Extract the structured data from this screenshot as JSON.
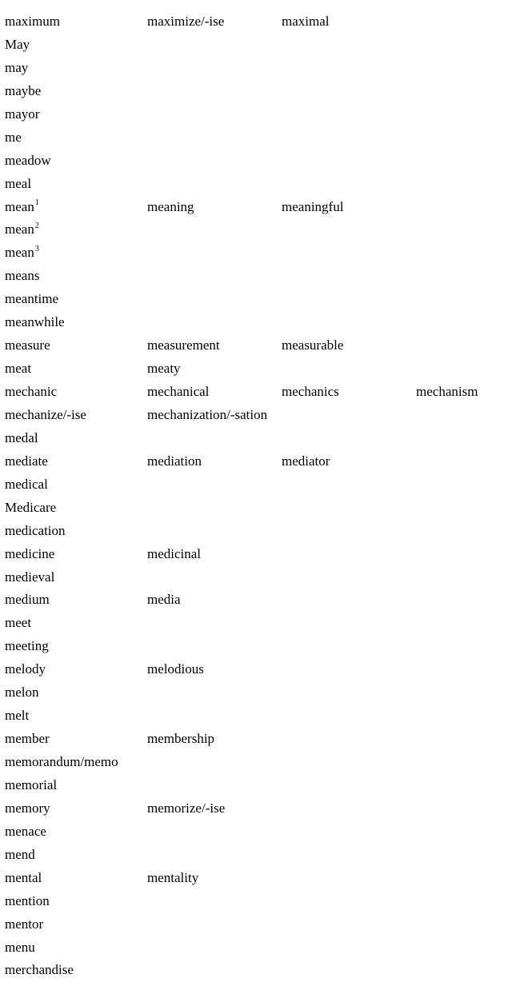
{
  "rows": [
    {
      "words": [
        "maximum",
        "maximize/-ise",
        "maximal"
      ]
    },
    {
      "words": [
        "May"
      ]
    },
    {
      "words": [
        "may"
      ]
    },
    {
      "words": [
        "maybe"
      ]
    },
    {
      "words": [
        "mayor"
      ]
    },
    {
      "words": [
        "me"
      ]
    },
    {
      "words": [
        "meadow"
      ]
    },
    {
      "words": [
        "meal"
      ]
    },
    {
      "words": [
        "mean",
        "meaning",
        "meaningful"
      ],
      "sup": "1"
    },
    {
      "words": [
        "mean"
      ],
      "sup": "2"
    },
    {
      "words": [
        "mean"
      ],
      "sup": "3"
    },
    {
      "words": [
        "means"
      ]
    },
    {
      "words": [
        "meantime"
      ]
    },
    {
      "words": [
        "meanwhile"
      ]
    },
    {
      "words": [
        "measure",
        "measurement",
        "measurable"
      ]
    },
    {
      "words": [
        "meat",
        "meaty"
      ]
    },
    {
      "words": [
        "mechanic",
        "mechanical",
        "mechanics",
        "mechanism"
      ]
    },
    {
      "words": [
        "mechanize/-ise",
        "mechanization/-sation"
      ]
    },
    {
      "words": [
        "medal"
      ]
    },
    {
      "words": [
        "mediate",
        "mediation",
        "mediator"
      ]
    },
    {
      "words": [
        "medical"
      ]
    },
    {
      "words": [
        "Medicare"
      ]
    },
    {
      "words": [
        "medication"
      ]
    },
    {
      "words": [
        "medicine",
        "medicinal"
      ]
    },
    {
      "words": [
        "medieval"
      ]
    },
    {
      "words": [
        "medium",
        "media"
      ]
    },
    {
      "words": [
        "meet"
      ]
    },
    {
      "words": [
        "meeting"
      ]
    },
    {
      "words": [
        "melody",
        "melodious"
      ]
    },
    {
      "words": [
        "melon"
      ]
    },
    {
      "words": [
        "melt"
      ]
    },
    {
      "words": [
        "member",
        "membership"
      ]
    },
    {
      "words": [
        "memorandum/memo"
      ]
    },
    {
      "words": [
        "memorial"
      ]
    },
    {
      "words": [
        "memory",
        "memorize/-ise"
      ]
    },
    {
      "words": [
        "menace"
      ]
    },
    {
      "words": [
        "mend"
      ]
    },
    {
      "words": [
        "mental",
        "mentality"
      ]
    },
    {
      "words": [
        "mention"
      ]
    },
    {
      "words": [
        "mentor"
      ]
    },
    {
      "words": [
        "menu"
      ]
    },
    {
      "words": [
        "merchandise"
      ]
    }
  ]
}
